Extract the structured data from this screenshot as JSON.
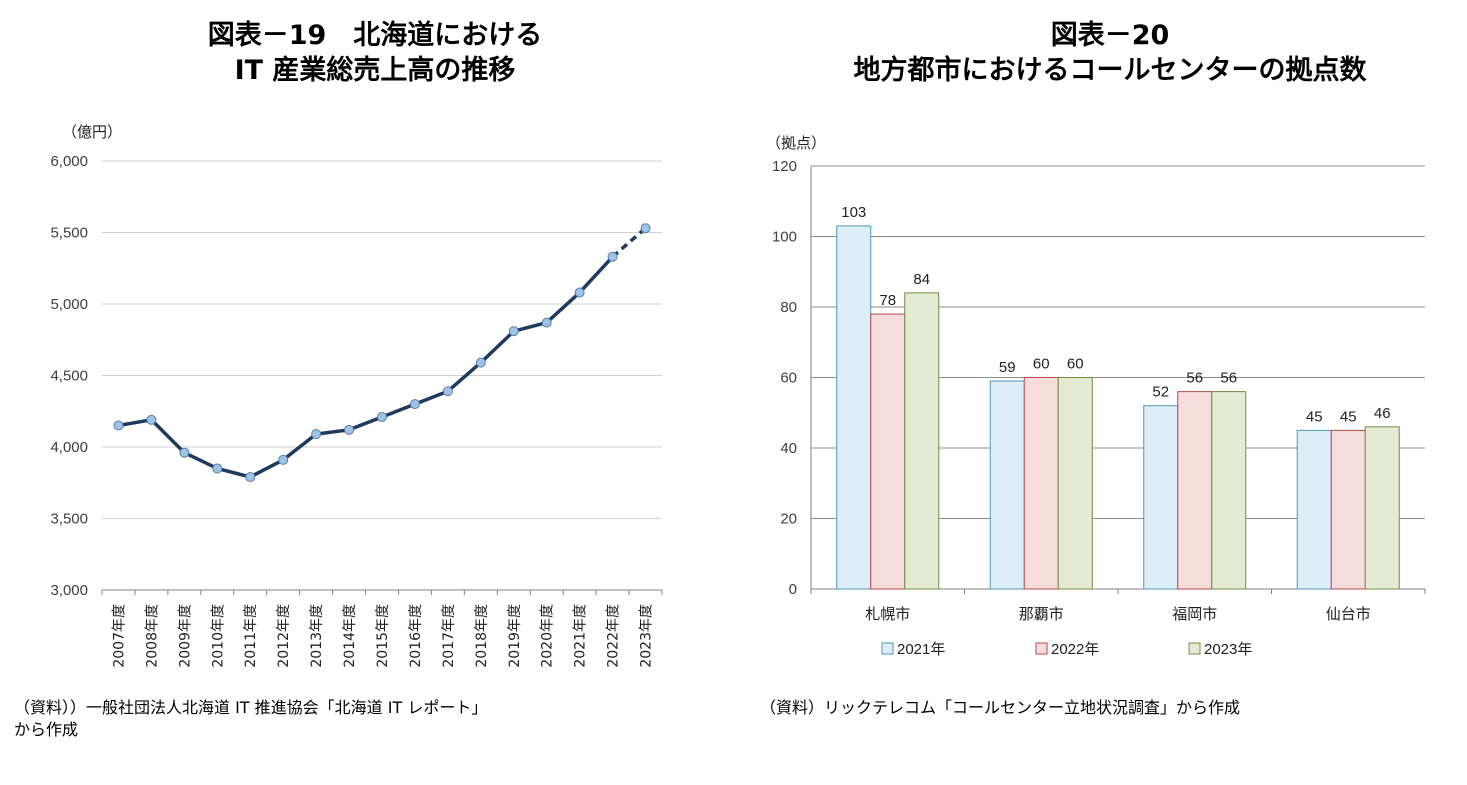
{
  "left_chart": {
    "title_line1": "図表－19　北海道における",
    "title_line2": "IT 産業総売上高の推移",
    "unit": "（億円）",
    "source": "（資料））一般社団法人北海道 IT 推進協会「北海道 IT レポート」\nから作成"
  },
  "right_chart": {
    "title_line1": "図表－20",
    "title_line2": "地方都市におけるコールセンターの拠点数",
    "unit": "（拠点）",
    "source": "（資料）リックテレコム「コールセンター立地状況調査」から作成"
  },
  "chart_data": [
    {
      "type": "line",
      "title": "図表－19　北海道における IT 産業総売上高の推移",
      "ylabel": "（億円）",
      "xlabel": "",
      "ylim": [
        3000,
        6000
      ],
      "yticks": [
        3000,
        3500,
        4000,
        4500,
        5000,
        5500,
        6000
      ],
      "ytick_labels": [
        "3,000",
        "3,500",
        "4,000",
        "4,500",
        "5,000",
        "5,500",
        "6,000"
      ],
      "grid": true,
      "categories": [
        "2007年度",
        "2008年度",
        "2009年度",
        "2010年度",
        "2011年度",
        "2012年度",
        "2013年度",
        "2014年度",
        "2015年度",
        "2016年度",
        "2017年度",
        "2018年度",
        "2019年度",
        "2020年度",
        "2021年度",
        "2022年度",
        "2023年度"
      ],
      "values": [
        4150,
        4190,
        3960,
        3850,
        3790,
        3910,
        4090,
        4120,
        4210,
        4300,
        4390,
        4590,
        4810,
        4870,
        5080,
        5330,
        5530
      ],
      "dashed_from_index": 15,
      "line_color": "#1f3a5f",
      "marker_fill": "#9dc3e6"
    },
    {
      "type": "bar",
      "title": "図表－20 地方都市におけるコールセンターの拠点数",
      "ylabel": "（拠点）",
      "xlabel": "",
      "ylim": [
        0,
        120
      ],
      "yticks": [
        0,
        20,
        40,
        60,
        80,
        100,
        120
      ],
      "grid": true,
      "legend_position": "bottom",
      "categories": [
        "札幌市",
        "那覇市",
        "福岡市",
        "仙台市"
      ],
      "series": [
        {
          "name": "2021年",
          "values": [
            103,
            59,
            52,
            45
          ],
          "fill": "#ddeef8",
          "stroke": "#4a9ab5"
        },
        {
          "name": "2022年",
          "values": [
            78,
            60,
            56,
            45
          ],
          "fill": "#f7dcdc",
          "stroke": "#b84a4a"
        },
        {
          "name": "2023年",
          "values": [
            84,
            60,
            56,
            46
          ],
          "fill": "#e3ecd3",
          "stroke": "#6f8f3c"
        }
      ]
    }
  ]
}
